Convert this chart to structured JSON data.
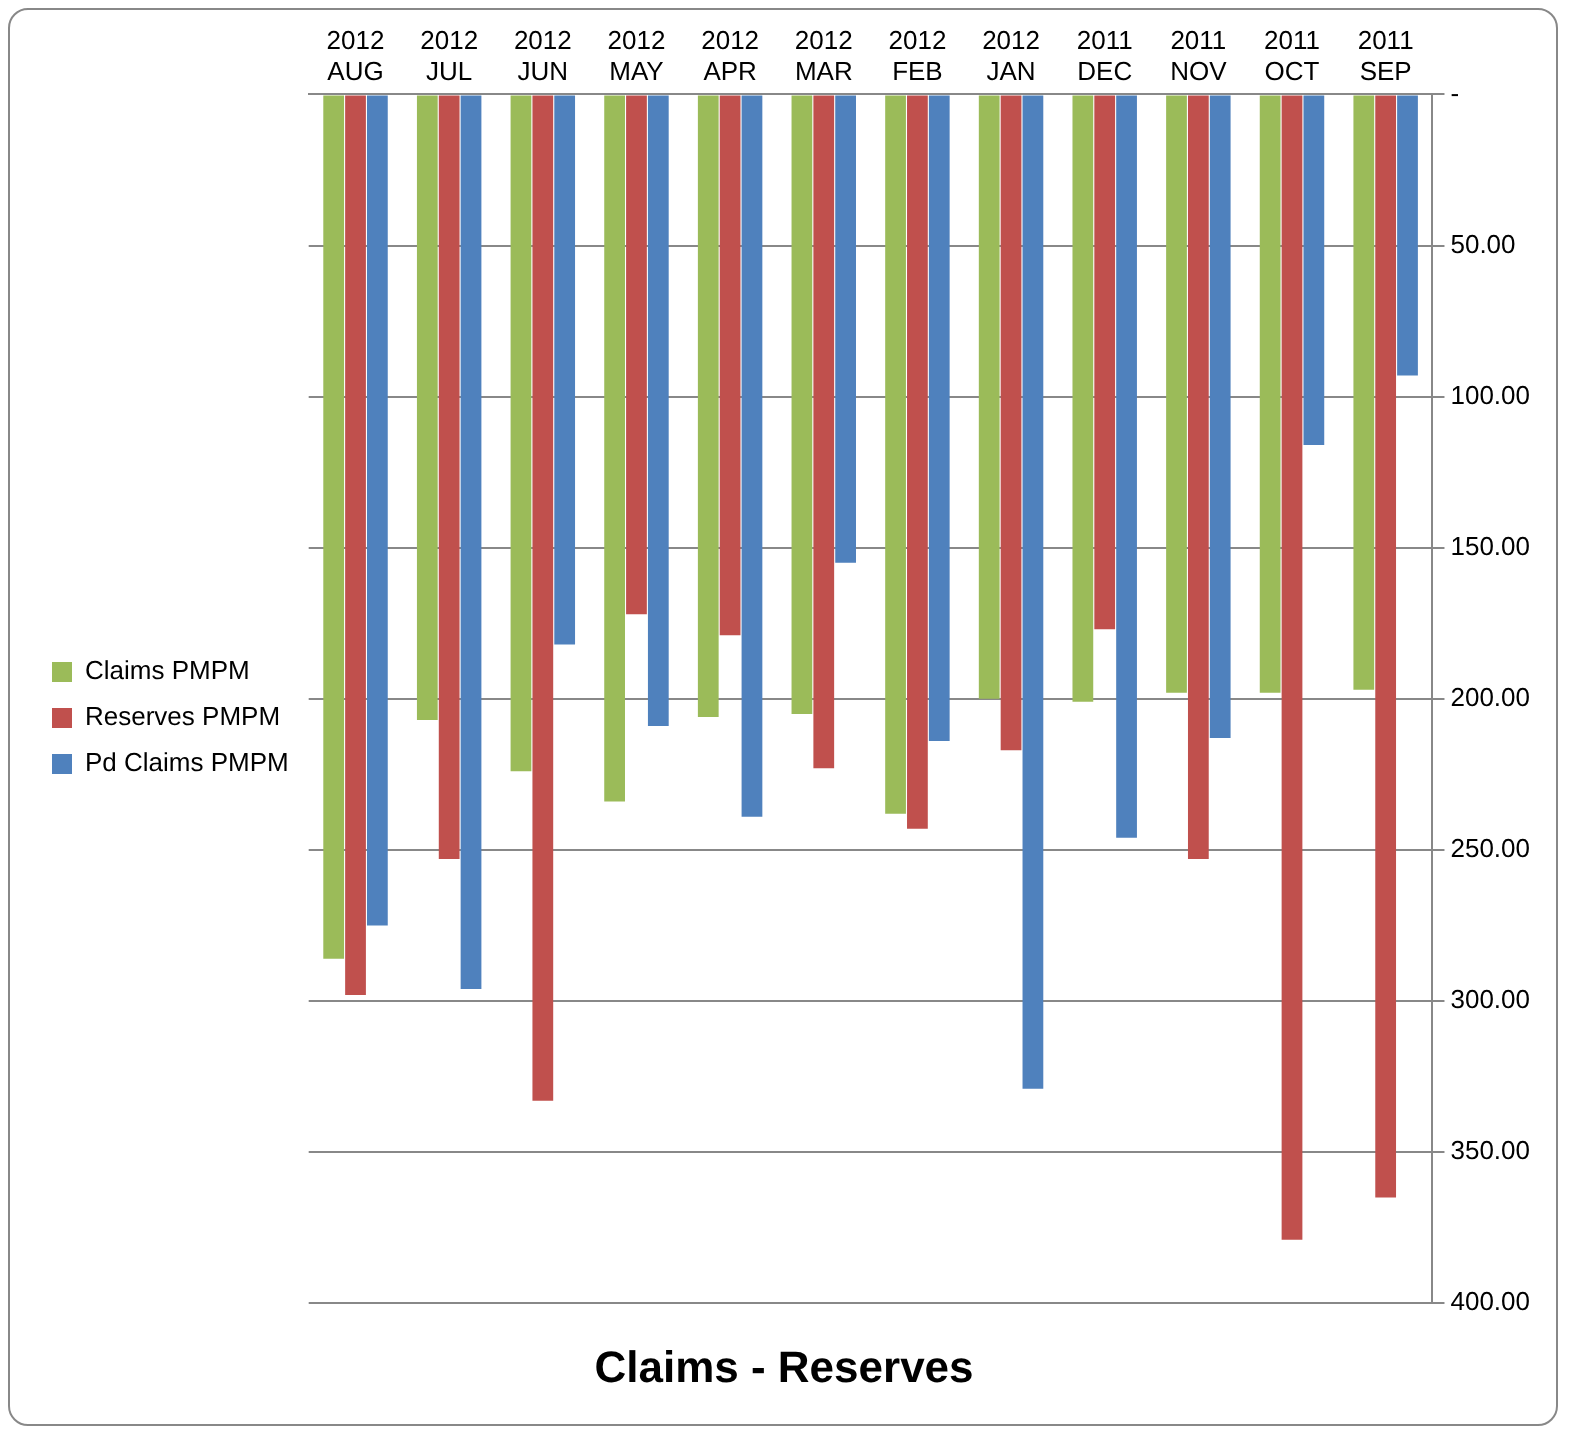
{
  "chart_data": {
    "type": "bar",
    "title": "Claims - Reserves",
    "categories": [
      "2012 AUG",
      "2012 JUL",
      "2012 JUN",
      "2012 MAY",
      "2012 APR",
      "2012 MAR",
      "2012 FEB",
      "2012 JAN",
      "2011 DEC",
      "2011 NOV",
      "2011 OCT",
      "2011 SEP"
    ],
    "series": [
      {
        "name": "Claims PMPM",
        "color": "#9bbb59",
        "values": [
          286,
          207,
          224,
          234,
          206,
          205,
          238,
          200,
          201,
          198,
          198,
          197
        ]
      },
      {
        "name": "Reserves PMPM",
        "color": "#c0504d",
        "values": [
          298,
          253,
          333,
          172,
          179,
          223,
          243,
          217,
          177,
          253,
          379,
          365
        ]
      },
      {
        "name": "Pd Claims PMPM",
        "color": "#4f81bd",
        "values": [
          275,
          296,
          182,
          209,
          239,
          155,
          214,
          329,
          246,
          213,
          116,
          93
        ]
      }
    ],
    "ylim": [
      400,
      0
    ],
    "yticks": [
      {
        "value": 0,
        "label": "-"
      },
      {
        "value": 50,
        "label": "50.00"
      },
      {
        "value": 100,
        "label": "100.00"
      },
      {
        "value": 150,
        "label": "150.00"
      },
      {
        "value": 200,
        "label": "200.00"
      },
      {
        "value": 250,
        "label": "250.00"
      },
      {
        "value": 300,
        "label": "300.00"
      },
      {
        "value": 350,
        "label": "350.00"
      },
      {
        "value": 400,
        "label": "400.00"
      }
    ],
    "grid": "y",
    "legend": "left"
  }
}
